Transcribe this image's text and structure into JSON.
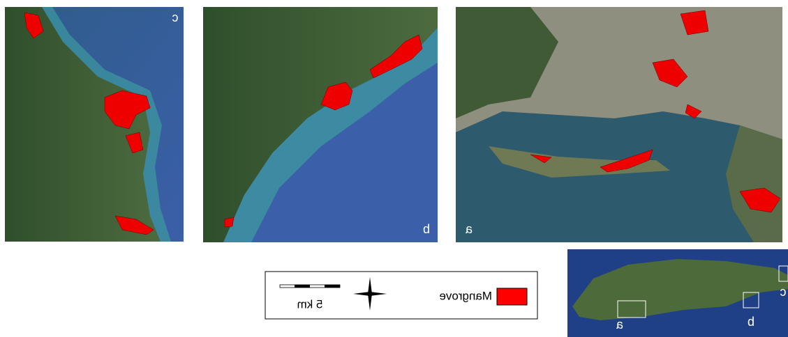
{
  "panels": [
    {
      "label": "c"
    },
    {
      "label": "b"
    },
    {
      "label": "a"
    }
  ],
  "legend": {
    "label": "Mangrove"
  },
  "scale_bar": {
    "label": "5 km"
  },
  "inset": {
    "labels": [
      "a",
      "b",
      "c"
    ]
  }
}
